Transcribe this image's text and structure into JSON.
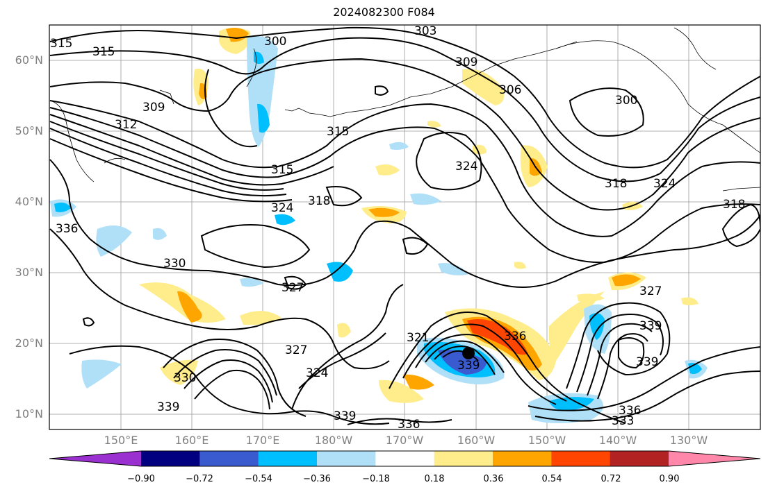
{
  "title": "2024082300 F084",
  "map": {
    "lat_labels": [
      "60°N",
      "50°N",
      "40°N",
      "30°N",
      "20°N",
      "10°N"
    ],
    "lon_labels": [
      "150°E",
      "160°E",
      "170°E",
      "180°W",
      "170°W",
      "160°W",
      "150°W",
      "140°W",
      "130°W"
    ],
    "contour_labels": [
      "315",
      "315",
      "300",
      "303",
      "309",
      "309",
      "306",
      "300",
      "312",
      "315",
      "315",
      "324",
      "318",
      "324",
      "318",
      "324",
      "336",
      "330",
      "327",
      "321",
      "327",
      "324",
      "330",
      "339",
      "339",
      "336",
      "333",
      "336",
      "339",
      "336",
      "327",
      "339",
      "339",
      "318"
    ],
    "marker": "storm-center"
  },
  "colorbar": {
    "colors": [
      "#9b30d0",
      "#000080",
      "#3a5bd0",
      "#00bfff",
      "#b0e0f8",
      "#ffffff",
      "#ffec8b",
      "#ffa500",
      "#ff4500",
      "#b22222",
      "#ff88aa"
    ],
    "tick_labels": [
      "−0.90",
      "−0.72",
      "−0.54",
      "−0.36",
      "−0.18",
      "0.18",
      "0.36",
      "0.54",
      "0.72",
      "0.90"
    ]
  }
}
